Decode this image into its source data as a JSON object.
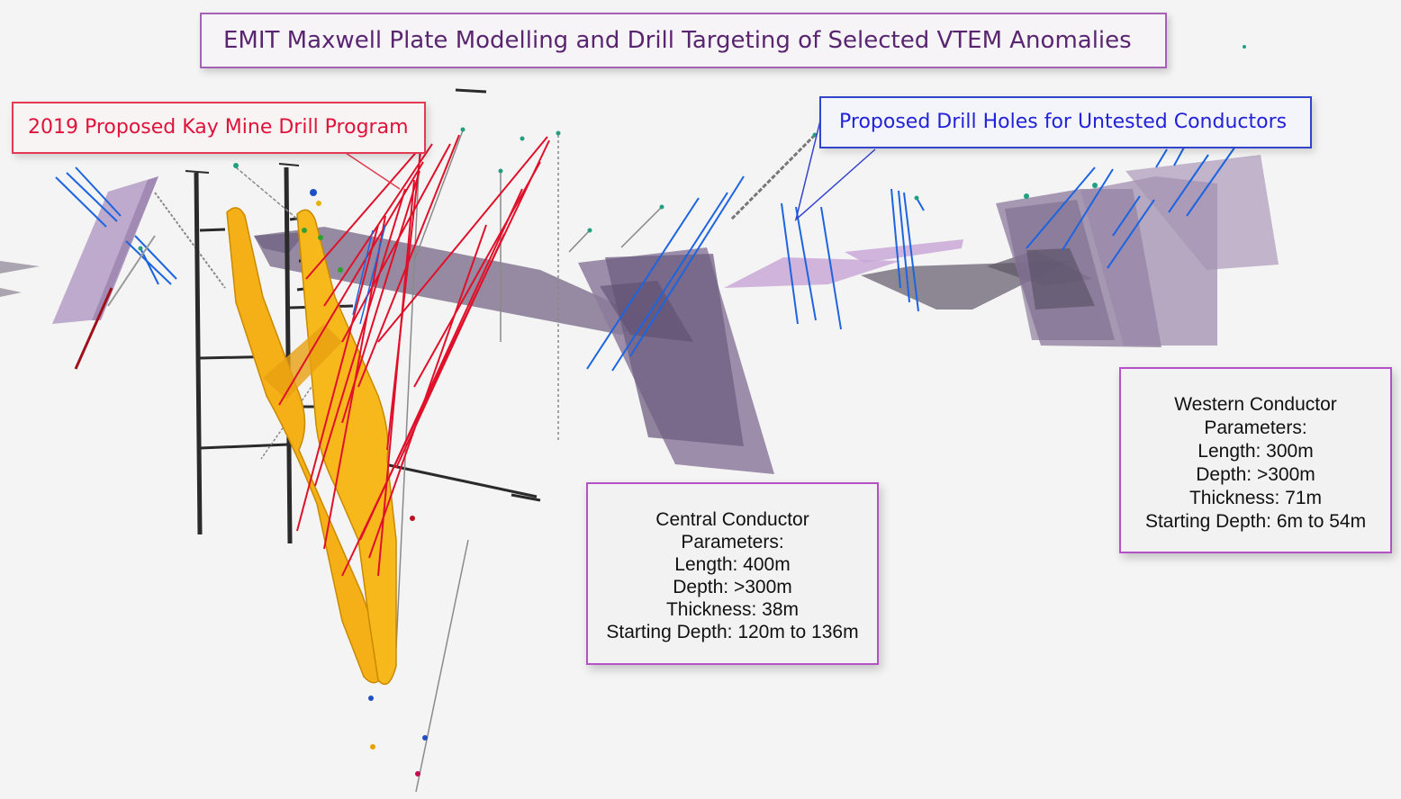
{
  "title": "EMIT Maxwell Plate Modelling and Drill Targeting  of Selected VTEM Anomalies",
  "callouts": {
    "kay_mine": "2019 Proposed Kay Mine Drill Program",
    "untested": "Proposed Drill Holes for Untested Conductors"
  },
  "central_conductor": {
    "heading": "Central Conductor",
    "subheading": "Parameters:",
    "length": "Length: 400m",
    "depth": "Depth: >300m",
    "thickness": "Thickness: 38m",
    "starting_depth": "Starting Depth: 120m to 136m"
  },
  "western_conductor": {
    "heading": "Western Conductor",
    "subheading": "Parameters:",
    "length": "Length: 300m",
    "depth": "Depth: >300m",
    "thickness": "Thickness: 71m",
    "starting_depth": "Starting Depth: 6m to 54m"
  },
  "colors": {
    "plate_fill": "#8c6fa0",
    "plate_light": "#c9a8d6",
    "orebody": "#f5b018",
    "proposed_kay_holes": "#e0102a",
    "proposed_untested_holes": "#1d64e0",
    "mine_workings": "#2a2a2a",
    "title_border": "#a561b4"
  }
}
